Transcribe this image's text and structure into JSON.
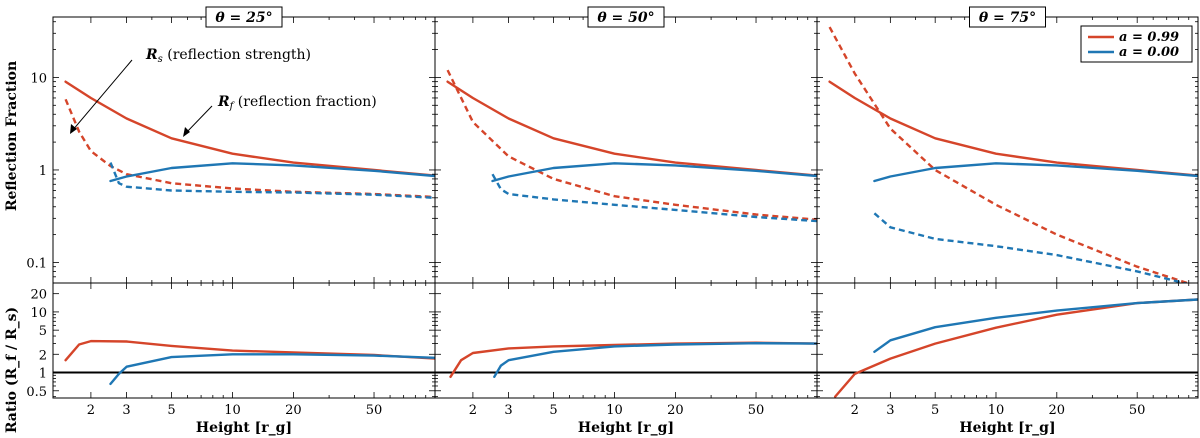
{
  "chart_data": {
    "type": "line",
    "y_axis_label_top": "Reflection Fraction",
    "y_axis_label_bottom": "Ratio (R_f / R_s)",
    "x_axis_label": "Height [r_g]",
    "x_range": [
      1.3,
      100
    ],
    "x_ticks": [
      2,
      3,
      5,
      10,
      20,
      50
    ],
    "x_tick_labels": [
      "2",
      "3",
      "5",
      "10",
      "20",
      "50"
    ],
    "top_y_range": [
      0.06,
      45
    ],
    "top_y_ticks": [
      0.1,
      1,
      10
    ],
    "top_y_tick_labels": [
      "0.1",
      "1",
      "10"
    ],
    "bottom_y_range": [
      0.38,
      30
    ],
    "bottom_y_ticks": [
      0.5,
      1,
      2,
      5,
      10,
      20
    ],
    "bottom_y_tick_labels": [
      "0.5",
      "1",
      "2",
      "5",
      "10",
      "20"
    ],
    "reference_line": 1,
    "legend": [
      {
        "label": "a = 0.99",
        "color": "#d5452a"
      },
      {
        "label": "a = 0.00",
        "color": "#1f77b4"
      }
    ],
    "legend_location": "top-right",
    "panels": [
      {
        "title": "θ = 25°",
        "annotations": [
          "R_s (reflection strength)",
          "R_f (reflection fraction)"
        ],
        "series": [
          {
            "name": "a = 0.99 R_f",
            "spin": "0.99",
            "kind": "R_f",
            "style": "solid",
            "x": [
              1.5,
              2,
              3,
              5,
              10,
              20,
              50,
              100
            ],
            "y": [
              9.0,
              6.0,
              3.6,
              2.2,
              1.5,
              1.2,
              1.0,
              0.87
            ]
          },
          {
            "name": "a = 0.99 R_s",
            "spin": "0.99",
            "kind": "R_s",
            "style": "dashed",
            "x": [
              1.5,
              1.75,
              2,
              2.5,
              3,
              5,
              10,
              20,
              50,
              100
            ],
            "y": [
              5.8,
              2.6,
              1.6,
              1.1,
              0.9,
              0.72,
              0.63,
              0.58,
              0.55,
              0.51
            ]
          },
          {
            "name": "a = 0.00 R_f",
            "spin": "0.00",
            "kind": "R_f",
            "style": "solid",
            "x": [
              2.5,
              3,
              5,
              10,
              20,
              50,
              100
            ],
            "y": [
              0.76,
              0.85,
              1.05,
              1.18,
              1.12,
              0.98,
              0.86
            ]
          },
          {
            "name": "a = 0.00 R_s",
            "spin": "0.00",
            "kind": "R_s",
            "style": "dashed",
            "x": [
              2.5,
              2.75,
              3,
              5,
              10,
              20,
              50,
              100
            ],
            "y": [
              1.2,
              0.72,
              0.66,
              0.6,
              0.58,
              0.57,
              0.54,
              0.5
            ]
          },
          {
            "name": "a = 0.99 ratio",
            "spin": "0.99",
            "kind": "ratio",
            "style": "solid",
            "x": [
              1.5,
              1.75,
              2,
              3,
              5,
              10,
              20,
              50,
              100
            ],
            "y": [
              1.6,
              2.9,
              3.3,
              3.25,
              2.75,
              2.3,
              2.15,
              1.95,
              1.7
            ]
          },
          {
            "name": "a = 0.00 ratio",
            "spin": "0.00",
            "kind": "ratio",
            "style": "solid",
            "x": [
              2.5,
              2.75,
              3,
              5,
              10,
              20,
              50,
              100
            ],
            "y": [
              0.65,
              0.95,
              1.25,
              1.8,
              2.0,
              2.0,
              1.9,
              1.75
            ]
          }
        ]
      },
      {
        "title": "θ = 50°",
        "series": [
          {
            "name": "a = 0.99 R_f",
            "spin": "0.99",
            "kind": "R_f",
            "style": "solid",
            "x": [
              1.5,
              2,
              3,
              5,
              10,
              20,
              50,
              100
            ],
            "y": [
              9.0,
              6.0,
              3.6,
              2.2,
              1.5,
              1.2,
              1.0,
              0.87
            ]
          },
          {
            "name": "a = 0.99 R_s",
            "spin": "0.99",
            "kind": "R_s",
            "style": "dashed",
            "x": [
              1.5,
              2,
              3,
              5,
              10,
              20,
              50,
              100
            ],
            "y": [
              12.0,
              3.3,
              1.4,
              0.8,
              0.52,
              0.42,
              0.33,
              0.29
            ]
          },
          {
            "name": "a = 0.00 R_f",
            "spin": "0.00",
            "kind": "R_f",
            "style": "solid",
            "x": [
              2.5,
              3,
              5,
              10,
              20,
              50,
              100
            ],
            "y": [
              0.76,
              0.85,
              1.05,
              1.18,
              1.12,
              0.98,
              0.86
            ]
          },
          {
            "name": "a = 0.00 R_s",
            "spin": "0.00",
            "kind": "R_s",
            "style": "dashed",
            "x": [
              2.5,
              2.75,
              3,
              5,
              10,
              20,
              50,
              100
            ],
            "y": [
              0.9,
              0.62,
              0.55,
              0.48,
              0.42,
              0.37,
              0.31,
              0.28
            ]
          },
          {
            "name": "a = 0.99 ratio",
            "spin": "0.99",
            "kind": "ratio",
            "style": "solid",
            "x": [
              1.55,
              1.75,
              2,
              3,
              5,
              10,
              20,
              50,
              100
            ],
            "y": [
              0.85,
              1.6,
              2.1,
              2.5,
              2.7,
              2.85,
              3.0,
              3.1,
              3.0
            ]
          },
          {
            "name": "a = 0.00 ratio",
            "spin": "0.00",
            "kind": "ratio",
            "style": "solid",
            "x": [
              2.55,
              2.75,
              3,
              5,
              10,
              20,
              50,
              100
            ],
            "y": [
              0.85,
              1.3,
              1.6,
              2.2,
              2.7,
              2.9,
              3.05,
              3.0
            ]
          }
        ]
      },
      {
        "title": "θ = 75°",
        "series": [
          {
            "name": "a = 0.99 R_f",
            "spin": "0.99",
            "kind": "R_f",
            "style": "solid",
            "x": [
              1.5,
              2,
              3,
              5,
              10,
              20,
              50,
              100
            ],
            "y": [
              9.0,
              6.0,
              3.6,
              2.2,
              1.5,
              1.2,
              1.0,
              0.87
            ]
          },
          {
            "name": "a = 0.99 R_s",
            "spin": "0.99",
            "kind": "R_s",
            "style": "dashed",
            "x": [
              1.5,
              2,
              3,
              5,
              10,
              20,
              50,
              100
            ],
            "y": [
              35.0,
              11.0,
              2.8,
              1.0,
              0.42,
              0.2,
              0.09,
              0.055
            ]
          },
          {
            "name": "a = 0.00 R_f",
            "spin": "0.00",
            "kind": "R_f",
            "style": "solid",
            "x": [
              2.5,
              3,
              5,
              10,
              20,
              50,
              100
            ],
            "y": [
              0.76,
              0.85,
              1.05,
              1.18,
              1.12,
              0.98,
              0.86
            ]
          },
          {
            "name": "a = 0.00 R_s",
            "spin": "0.00",
            "kind": "R_s",
            "style": "dashed",
            "x": [
              2.5,
              3,
              5,
              10,
              20,
              50,
              100
            ],
            "y": [
              0.34,
              0.24,
              0.18,
              0.15,
              0.12,
              0.08,
              0.055
            ]
          },
          {
            "name": "a = 0.99 ratio",
            "spin": "0.99",
            "kind": "ratio",
            "style": "solid",
            "x": [
              1.6,
              2,
              3,
              5,
              10,
              20,
              50,
              100
            ],
            "y": [
              0.4,
              0.95,
              1.7,
              3.0,
              5.5,
              9.0,
              14.0,
              16.0
            ]
          },
          {
            "name": "a = 0.00 ratio",
            "spin": "0.00",
            "kind": "ratio",
            "style": "solid",
            "x": [
              2.5,
              3,
              5,
              10,
              20,
              50,
              100
            ],
            "y": [
              2.2,
              3.4,
              5.6,
              8.0,
              10.5,
              14.0,
              16.0
            ]
          }
        ]
      }
    ]
  }
}
